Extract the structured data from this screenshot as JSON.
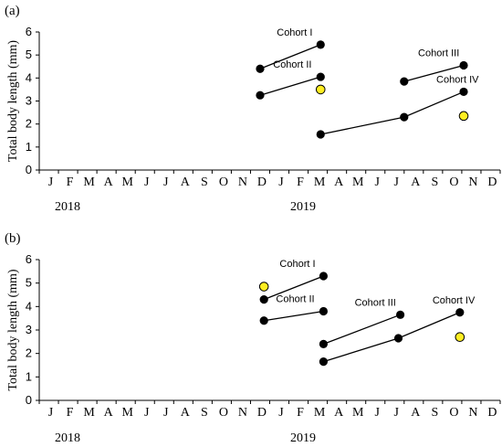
{
  "colors": {
    "axis": "#000000",
    "dot": "#000000",
    "highlight": "#ffee22"
  },
  "chart_data": [
    {
      "panel_label": "(a)",
      "type": "line",
      "ylabel": "Total body length (mm)",
      "ylim": [
        0,
        6
      ],
      "yticks": [
        "0",
        "1",
        "2",
        "3",
        "4",
        "5",
        "6"
      ],
      "x_tick_labels": [
        "J",
        "F",
        "M",
        "A",
        "M",
        "J",
        "J",
        "A",
        "S",
        "O",
        "N",
        "D",
        "J",
        "F",
        "M",
        "A",
        "M",
        "J",
        "J",
        "A",
        "S",
        "O",
        "N",
        "D"
      ],
      "year_labels": [
        "2018",
        "2019"
      ],
      "series": [
        {
          "name": "Cohort I",
          "points": [
            [
              11,
              4.4
            ],
            [
              14.15,
              5.45
            ]
          ]
        },
        {
          "name": "Cohort II",
          "points": [
            [
              11,
              3.25
            ],
            [
              14.15,
              4.05
            ]
          ]
        },
        {
          "name": "Cohort III",
          "points": [
            [
              18.5,
              3.85
            ],
            [
              21.6,
              4.55
            ]
          ]
        },
        {
          "name": "Cohort IV",
          "points": [
            [
              14.15,
              1.55
            ],
            [
              18.5,
              2.3
            ],
            [
              21.6,
              3.4
            ]
          ]
        }
      ],
      "highlight_points": [
        [
          14.15,
          3.5
        ],
        [
          21.6,
          2.35
        ]
      ]
    },
    {
      "panel_label": "(b)",
      "type": "line",
      "ylabel": "Total body length (mm)",
      "ylim": [
        0,
        6
      ],
      "yticks": [
        "0",
        "1",
        "2",
        "3",
        "4",
        "5",
        "6"
      ],
      "x_tick_labels": [
        "J",
        "F",
        "M",
        "A",
        "M",
        "J",
        "J",
        "A",
        "S",
        "O",
        "N",
        "D",
        "J",
        "F",
        "M",
        "A",
        "M",
        "J",
        "J",
        "A",
        "S",
        "O",
        "N",
        "D"
      ],
      "year_labels": [
        "2018",
        "2019"
      ],
      "series": [
        {
          "name": "Cohort I",
          "points": [
            [
              11.2,
              4.3
            ],
            [
              14.3,
              5.3
            ]
          ]
        },
        {
          "name": "Cohort II",
          "points": [
            [
              11.2,
              3.4
            ],
            [
              14.3,
              3.8
            ]
          ]
        },
        {
          "name": "Cohort III",
          "points": [
            [
              14.3,
              2.4
            ],
            [
              18.3,
              3.65
            ]
          ]
        },
        {
          "name": "Cohort IV",
          "points": [
            [
              14.3,
              1.65
            ],
            [
              18.2,
              2.65
            ],
            [
              21.4,
              3.75
            ]
          ]
        }
      ],
      "highlight_points": [
        [
          11.2,
          4.85
        ],
        [
          21.4,
          2.7
        ]
      ]
    }
  ]
}
